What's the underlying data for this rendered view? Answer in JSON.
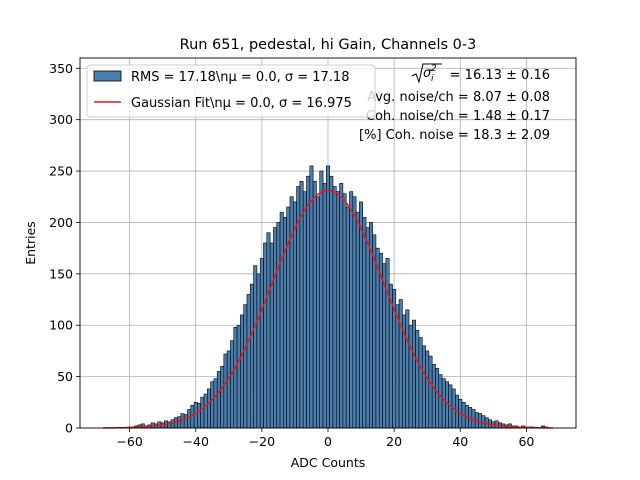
{
  "chart_data": {
    "type": "bar",
    "title": "Run 651, pedestal, hi Gain, Channels 0-3",
    "xlabel": "ADC Counts",
    "ylabel": "Entries",
    "xlim": [
      -75,
      75
    ],
    "ylim": [
      0,
      360
    ],
    "xticks": [
      -60,
      -40,
      -20,
      0,
      20,
      40,
      60
    ],
    "xtick_labels": [
      "−60",
      "−40",
      "−20",
      "0",
      "20",
      "40",
      "60"
    ],
    "yticks": [
      0,
      50,
      100,
      150,
      200,
      250,
      300,
      350
    ],
    "ytick_labels": [
      "0",
      "50",
      "100",
      "150",
      "200",
      "250",
      "300",
      "350"
    ],
    "grid": true,
    "legend_position": "upper-left",
    "bin_width": 1,
    "bin_centers": [
      -67,
      -66,
      -65,
      -64,
      -63,
      -62,
      -61,
      -60,
      -59,
      -58,
      -57,
      -56,
      -55,
      -54,
      -53,
      -52,
      -51,
      -50,
      -49,
      -48,
      -47,
      -46,
      -45,
      -44,
      -43,
      -42,
      -41,
      -40,
      -39,
      -38,
      -37,
      -36,
      -35,
      -34,
      -33,
      -32,
      -31,
      -30,
      -29,
      -28,
      -27,
      -26,
      -25,
      -24,
      -23,
      -22,
      -21,
      -20,
      -19,
      -18,
      -17,
      -16,
      -15,
      -14,
      -13,
      -12,
      -11,
      -10,
      -9,
      -8,
      -7,
      -6,
      -5,
      -4,
      -3,
      -2,
      -1,
      0,
      1,
      2,
      3,
      4,
      5,
      6,
      7,
      8,
      9,
      10,
      11,
      12,
      13,
      14,
      15,
      16,
      17,
      18,
      19,
      20,
      21,
      22,
      23,
      24,
      25,
      26,
      27,
      28,
      29,
      30,
      31,
      32,
      33,
      34,
      35,
      36,
      37,
      38,
      39,
      40,
      41,
      42,
      43,
      44,
      45,
      46,
      47,
      48,
      49,
      50,
      51,
      52,
      53,
      54,
      55,
      56,
      57,
      58,
      59,
      60,
      61,
      62,
      63,
      64,
      65,
      66,
      67
    ],
    "counts": [
      0,
      0,
      0,
      0,
      0,
      0,
      0,
      1,
      1,
      2,
      3,
      4,
      2,
      3,
      5,
      4,
      6,
      5,
      7,
      6,
      8,
      10,
      11,
      14,
      13,
      18,
      22,
      25,
      24,
      30,
      33,
      38,
      45,
      48,
      55,
      60,
      72,
      75,
      85,
      98,
      100,
      110,
      120,
      130,
      140,
      158,
      150,
      165,
      180,
      190,
      180,
      195,
      200,
      210,
      205,
      215,
      225,
      220,
      235,
      240,
      230,
      245,
      255,
      240,
      225,
      250,
      238,
      255,
      245,
      235,
      230,
      238,
      228,
      215,
      230,
      225,
      210,
      220,
      205,
      195,
      200,
      188,
      175,
      170,
      160,
      165,
      140,
      135,
      120,
      125,
      110,
      115,
      100,
      105,
      95,
      88,
      80,
      75,
      70,
      62,
      58,
      52,
      48,
      45,
      42,
      38,
      32,
      28,
      25,
      22,
      20,
      18,
      15,
      14,
      12,
      10,
      8,
      6,
      7,
      5,
      4,
      3,
      4,
      2,
      2,
      1,
      2,
      1,
      1,
      1,
      0,
      0,
      2,
      1,
      0,
      0
    ],
    "series": [
      {
        "name": "RMS = 17.18\\nμ = 0.0, σ = 17.18",
        "kind": "histogram",
        "color": "#4a7fb0",
        "edge": "#000000"
      },
      {
        "name": "Gaussian Fit\\nμ = 0.0, σ = 16.975",
        "kind": "line",
        "color": "#e8161c",
        "mu": 0.0,
        "sigma": 16.975,
        "amplitude": 231,
        "x_range": [
          -68,
          68
        ]
      }
    ],
    "annotations": [
      {
        "label_html": true,
        "text": "= 16.13 ± 0.16"
      },
      {
        "text": "Avg. noise/ch = 8.07 ± 0.08"
      },
      {
        "text": "Coh. noise/ch = 1.48 ± 0.17"
      },
      {
        "text": "[%] Coh. noise = 18.3 ± 2.09"
      }
    ]
  }
}
